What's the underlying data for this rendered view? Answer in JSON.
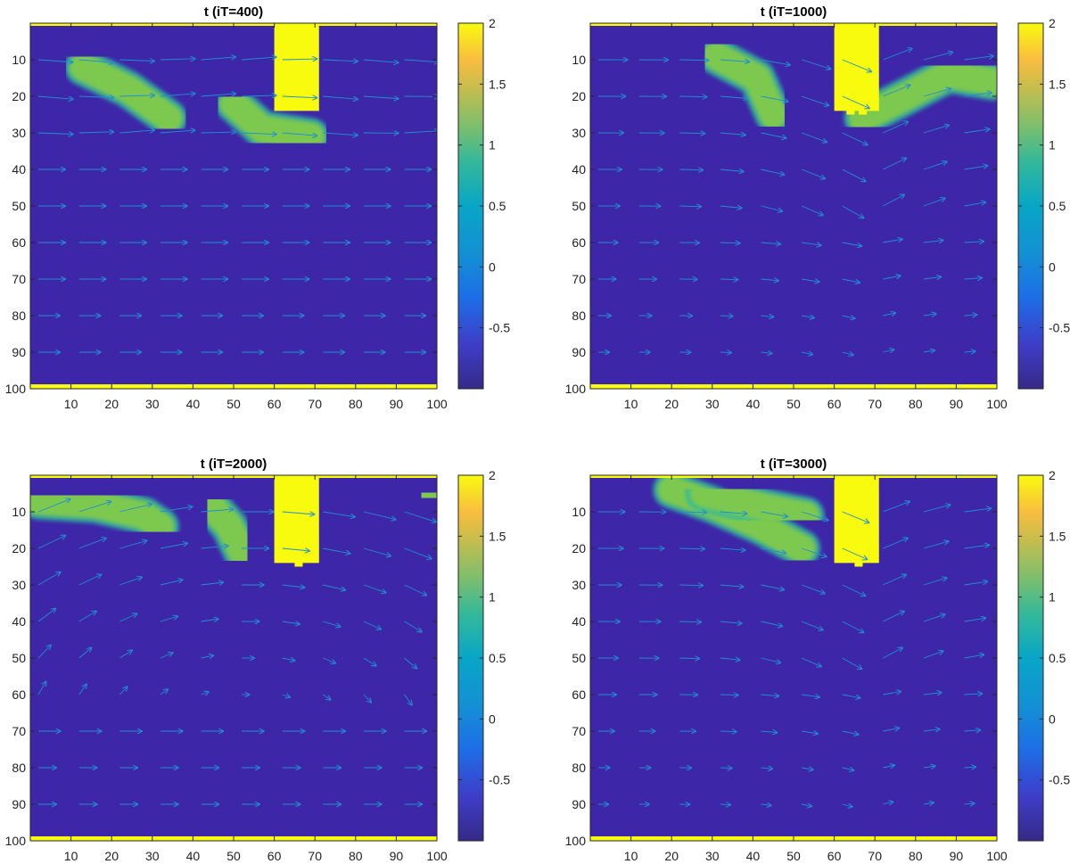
{
  "colors": {
    "background": "#3e26a8",
    "obstacle": "#f9fb0e",
    "blob": "#7dc94f",
    "arrow": "#1f8fd0",
    "axis": "#262626"
  },
  "colorbar": {
    "colormap": "parula",
    "range": [
      -1,
      2
    ],
    "ticks": [
      -0.5,
      0,
      0.5,
      1,
      1.5,
      2
    ],
    "tick_labels": [
      "-0.5",
      "0",
      "0.5",
      "1",
      "1.5",
      "2"
    ]
  },
  "chart_data": [
    {
      "type": "heatmap",
      "title": "t (iT=400)",
      "xlim": [
        0,
        100
      ],
      "ylim": [
        0,
        100
      ],
      "y_reversed": true,
      "xticks": [
        10,
        20,
        30,
        40,
        50,
        60,
        70,
        80,
        90,
        100
      ],
      "yticks": [
        10,
        20,
        30,
        40,
        50,
        60,
        70,
        80,
        90,
        100
      ],
      "tick_labels": [
        "10",
        "20",
        "30",
        "40",
        "50",
        "60",
        "70",
        "80",
        "90",
        "100"
      ],
      "obstacle_x": [
        60,
        71
      ],
      "obstacle_depth": [
        [
          60,
          24
        ],
        [
          71,
          24
        ]
      ],
      "blobs": [
        {
          "path": [
            [
              13,
              12
            ],
            [
              24,
              18
            ],
            [
              34,
              26
            ]
          ],
          "value": 1
        },
        {
          "path": [
            [
              50,
              22
            ],
            [
              57,
              29
            ],
            [
              69,
              31
            ]
          ],
          "value": 1
        }
      ],
      "flow": {
        "mode": "uniform",
        "strength": 6.5
      }
    },
    {
      "type": "heatmap",
      "title": "t (iT=1000)",
      "xlim": [
        0,
        100
      ],
      "ylim": [
        0,
        100
      ],
      "y_reversed": true,
      "xticks": [
        10,
        20,
        30,
        40,
        50,
        60,
        70,
        80,
        90,
        100
      ],
      "yticks": [
        10,
        20,
        30,
        40,
        50,
        60,
        70,
        80,
        90,
        100
      ],
      "tick_labels": [
        "10",
        "20",
        "30",
        "40",
        "50",
        "60",
        "70",
        "80",
        "90",
        "100"
      ],
      "obstacle_x": [
        60,
        71
      ],
      "obstacle_depth": [
        [
          60,
          24
        ],
        [
          63,
          24
        ],
        [
          63,
          25
        ],
        [
          65,
          25
        ],
        [
          65,
          24
        ],
        [
          66,
          24
        ],
        [
          66,
          25
        ],
        [
          68,
          25
        ],
        [
          68,
          24
        ],
        [
          71,
          24
        ]
      ],
      "blobs": [
        {
          "path": [
            [
              31,
              9
            ],
            [
              41,
              15
            ],
            [
              45,
              25
            ]
          ],
          "value": 1
        },
        {
          "path": [
            [
              67,
              26
            ],
            [
              76,
              21
            ],
            [
              88,
              14
            ],
            [
              99,
              16
            ]
          ],
          "value": 1
        }
      ],
      "flow": {
        "mode": "deflect",
        "strength": 6
      }
    },
    {
      "type": "heatmap",
      "title": "t (iT=2000)",
      "xlim": [
        0,
        100
      ],
      "ylim": [
        0,
        100
      ],
      "y_reversed": true,
      "xticks": [
        10,
        20,
        30,
        40,
        50,
        60,
        70,
        80,
        90,
        100
      ],
      "yticks": [
        10,
        20,
        30,
        40,
        50,
        60,
        70,
        80,
        90,
        100
      ],
      "tick_labels": [
        "10",
        "20",
        "30",
        "40",
        "50",
        "60",
        "70",
        "80",
        "90",
        "100"
      ],
      "obstacle_x": [
        60,
        71
      ],
      "obstacle_depth": [
        [
          60,
          24
        ],
        [
          65,
          24
        ],
        [
          65,
          25
        ],
        [
          67,
          25
        ],
        [
          67,
          24
        ],
        [
          71,
          24
        ]
      ],
      "blobs": [
        {
          "path": [
            [
              2,
              7
            ],
            [
              16,
              8
            ],
            [
              28,
              11
            ],
            [
              32,
              14
            ]
          ],
          "value": 1
        },
        {
          "path": [
            [
              45,
              9
            ],
            [
              49,
              14
            ],
            [
              52,
              21
            ]
          ],
          "value": 1
        },
        {
          "path": [
            [
              97,
              5
            ],
            [
              101,
              6
            ]
          ],
          "value": 1
        }
      ],
      "flow": {
        "mode": "swirl",
        "strength": 6
      }
    },
    {
      "type": "heatmap",
      "title": "t (iT=3000)",
      "xlim": [
        0,
        100
      ],
      "ylim": [
        0,
        100
      ],
      "y_reversed": true,
      "xticks": [
        10,
        20,
        30,
        40,
        50,
        60,
        70,
        80,
        90,
        100
      ],
      "yticks": [
        10,
        20,
        30,
        40,
        50,
        60,
        70,
        80,
        90,
        100
      ],
      "tick_labels": [
        "10",
        "20",
        "30",
        "40",
        "50",
        "60",
        "70",
        "80",
        "90",
        "100"
      ],
      "obstacle_x": [
        60,
        71
      ],
      "obstacle_depth": [
        [
          60,
          24
        ],
        [
          65,
          24
        ],
        [
          65,
          25
        ],
        [
          67,
          25
        ],
        [
          67,
          24
        ],
        [
          71,
          24
        ]
      ],
      "blobs": [
        {
          "path": [
            [
              20,
              4
            ],
            [
              30,
              8
            ],
            [
              42,
              14
            ],
            [
              52,
              20
            ]
          ],
          "value": 1
        },
        {
          "path": [
            [
              28,
              5
            ],
            [
              44,
              9
            ],
            [
              53,
              11
            ]
          ],
          "value": 1
        }
      ],
      "flow": {
        "mode": "deflect",
        "strength": 5.5
      }
    }
  ]
}
